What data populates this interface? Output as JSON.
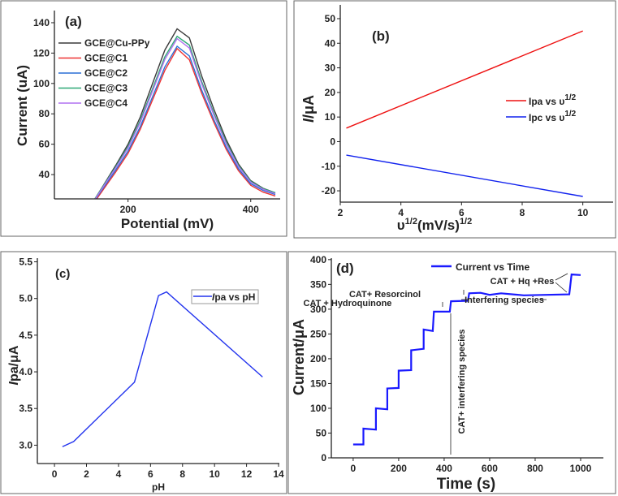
{
  "chart_data": [
    {
      "type": "line",
      "panel_label": "(a)",
      "xlabel": "Potential (mV)",
      "ylabel": "Current (uA)",
      "xlim": [
        80,
        448
      ],
      "ylim": [
        24,
        148
      ],
      "xticks": [
        200,
        400
      ],
      "yticks": [
        40,
        60,
        80,
        100,
        120,
        140
      ],
      "legend_position": "top-left",
      "x": [
        140,
        160,
        180,
        200,
        220,
        240,
        260,
        280,
        300,
        320,
        340,
        360,
        380,
        400,
        420,
        440
      ],
      "series": [
        {
          "name": "GCE@Cu-PPy",
          "color": "#3a3a3a",
          "values": [
            20,
            33,
            46,
            60,
            78,
            100,
            122,
            136,
            130,
            105,
            83,
            63,
            47,
            36,
            31,
            28
          ]
        },
        {
          "name": "GCE@C1",
          "color": "#ee3333",
          "values": [
            18.8,
            30.3,
            41.7,
            54,
            69.9,
            89.2,
            108.6,
            123,
            115.6,
            93.6,
            74.3,
            56.7,
            42.6,
            33,
            28.5,
            25.9
          ]
        },
        {
          "name": "GCE@C2",
          "color": "#2a6fd6",
          "values": [
            19.7,
            31.4,
            43,
            55.5,
            71.6,
            91.3,
            110.9,
            124.5,
            118.1,
            95.7,
            76.1,
            58.2,
            43.9,
            34,
            29.6,
            26.9
          ]
        },
        {
          "name": "GCE@C3",
          "color": "#2fa877",
          "values": [
            20.3,
            32.7,
            45.1,
            58.5,
            75.7,
            96.6,
            117.6,
            131,
            125.3,
            101.4,
            80.4,
            61.3,
            46.1,
            35.6,
            30.8,
            28
          ]
        },
        {
          "name": "GCE@C4",
          "color": "#b070f0",
          "values": [
            19.9,
            32.2,
            44.4,
            57.5,
            74.4,
            95.1,
            115.8,
            129.5,
            123.3,
            99.8,
            79.1,
            60.3,
            45.3,
            35,
            30.3,
            27.4
          ]
        }
      ]
    },
    {
      "type": "line",
      "panel_label": "(b)",
      "xlabel_base": "υ",
      "xlabel_sup1": "1/2",
      "xlabel_mid": "(mV/s)",
      "xlabel_sup2": "1/2",
      "ylabel_italic": "I",
      "ylabel_rest": "/μA",
      "xlim": [
        2,
        11
      ],
      "ylim": [
        -24.6,
        55.6
      ],
      "xticks": [
        2,
        4,
        6,
        8,
        10
      ],
      "yticks": [
        -20,
        -10,
        0,
        10,
        20,
        30,
        40,
        50
      ],
      "legend_position": "right",
      "x": [
        2.2,
        10
      ],
      "series": [
        {
          "name": "Ipa vs υ",
          "sup": "1/2",
          "color": "#ee1111",
          "values": [
            5.5,
            45
          ]
        },
        {
          "name": "Ipc vs υ",
          "sup": "1/2",
          "color": "#1122ee",
          "values": [
            -5.5,
            -22.3
          ]
        }
      ]
    },
    {
      "type": "line",
      "panel_label": "(c)",
      "xlabel": "pH",
      "ylabel_italic": "I",
      "ylabel_rest": "pa/μA",
      "xlim": [
        -1.07,
        14.05
      ],
      "ylim": [
        2.75,
        5.55
      ],
      "xticks": [
        0,
        2,
        4,
        6,
        8,
        10,
        12,
        14
      ],
      "yticks": [
        "3.0",
        "3.5",
        "4.0",
        "4.5",
        "5.0",
        "5.5"
      ],
      "legend_position": "top-right",
      "x": [
        0.5,
        1.2,
        5,
        6.5,
        7,
        13
      ],
      "series": [
        {
          "name_italic": "I",
          "name": "pa vs pH",
          "color": "#2233ee",
          "values": [
            2.98,
            3.05,
            3.86,
            5.04,
            5.09,
            3.93
          ]
        }
      ]
    },
    {
      "type": "line",
      "panel_label": "(d)",
      "xlabel": "Time (s)",
      "ylabel": "Current/μA",
      "xlim": [
        -96,
        1100
      ],
      "ylim": [
        0,
        403
      ],
      "xticks": [
        0,
        200,
        400,
        600,
        800,
        1000
      ],
      "yticks": [
        0,
        50,
        100,
        150,
        200,
        250,
        300,
        350,
        400
      ],
      "legend_position": "top",
      "series": [
        {
          "name": "Current vs Time",
          "color": "#1a1aff",
          "x": [
            0,
            45,
            45,
            100,
            100,
            150,
            150,
            200,
            200,
            255,
            255,
            310,
            310,
            350,
            355,
            425,
            430,
            505,
            510,
            560,
            600,
            650,
            750,
            950,
            960,
            1000
          ],
          "values": [
            27,
            27,
            59,
            57,
            100,
            98,
            140,
            141,
            176,
            177,
            217,
            220,
            259,
            256,
            295,
            295,
            316,
            317,
            332,
            333,
            329,
            332,
            328,
            330,
            370,
            369
          ]
        }
      ],
      "annotations": {
        "hydroquinone": "CAT + Hydroquinone",
        "resorcinol": "CAT+ Resorcinol",
        "interfering": "Interfering species",
        "hq_res": "CAT + Hq +Res",
        "cat_interfering": "CAT+ interfering species"
      }
    }
  ]
}
